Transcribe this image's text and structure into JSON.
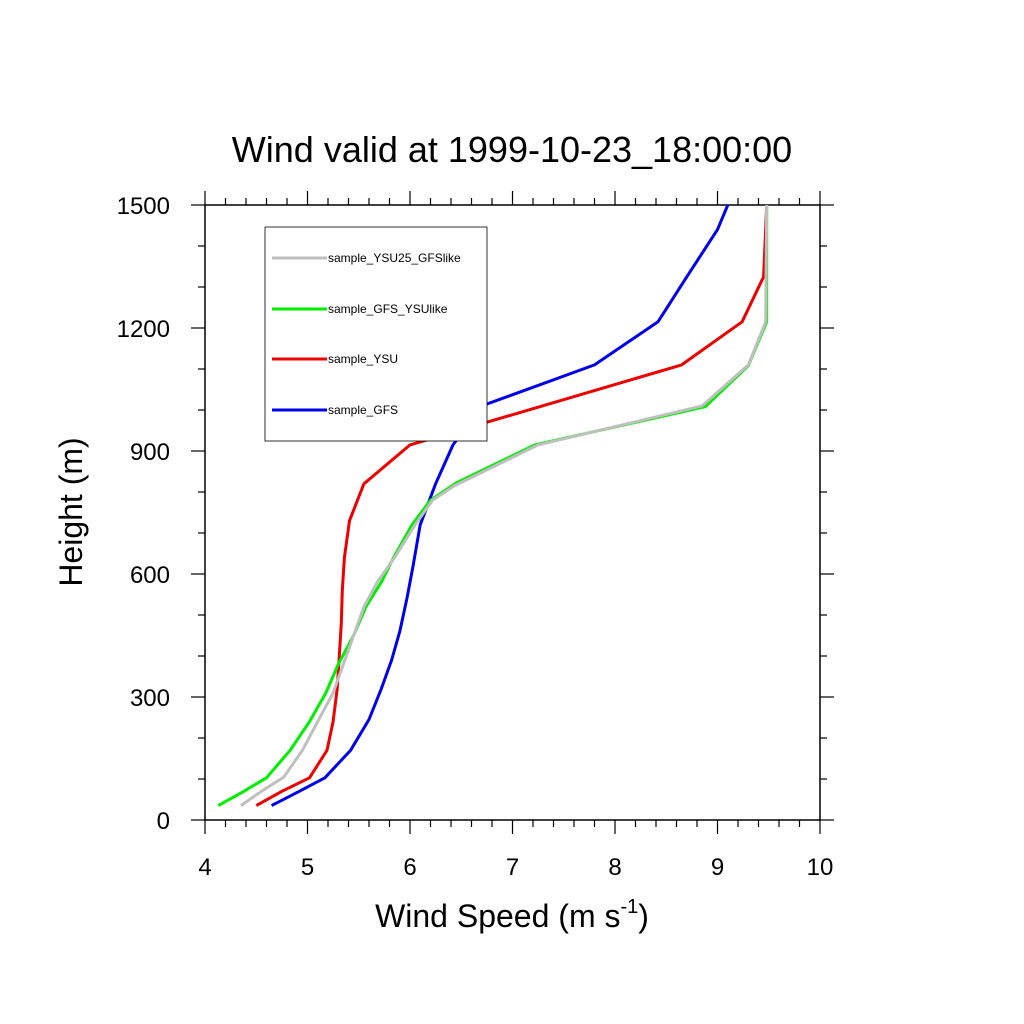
{
  "chart_data": {
    "type": "line",
    "title": "Wind valid at 1999-10-23_18:00:00",
    "xlabel": "Wind Speed (m s",
    "xlabel_sup": "-1",
    "xlabel_end": ")",
    "ylabel": "Height (m)",
    "xlim": [
      4,
      10
    ],
    "ylim": [
      0,
      1500
    ],
    "x_ticks": [
      "4",
      "5",
      "6",
      "7",
      "8",
      "9",
      "10"
    ],
    "y_ticks": [
      "0",
      "300",
      "600",
      "900",
      "1200",
      "1500"
    ],
    "grid": false,
    "legend_position": "top-left",
    "series": [
      {
        "name": "sample_YSU25_GFSlike",
        "color": "#bfbfbf",
        "points": [
          [
            4.35,
            35
          ],
          [
            4.55,
            70
          ],
          [
            4.77,
            105
          ],
          [
            4.95,
            170
          ],
          [
            5.1,
            240
          ],
          [
            5.25,
            310
          ],
          [
            5.35,
            380
          ],
          [
            5.45,
            450
          ],
          [
            5.55,
            520
          ],
          [
            5.68,
            580
          ],
          [
            5.85,
            640
          ],
          [
            6.05,
            720
          ],
          [
            6.22,
            780
          ],
          [
            6.43,
            815
          ],
          [
            7.25,
            915
          ],
          [
            8.85,
            1010
          ],
          [
            9.3,
            1110
          ],
          [
            9.47,
            1215
          ],
          [
            9.48,
            1500
          ]
        ]
      },
      {
        "name": "sample_GFS_YSUlike",
        "color": "#00ee00",
        "points": [
          [
            4.13,
            35
          ],
          [
            4.38,
            70
          ],
          [
            4.6,
            103
          ],
          [
            4.83,
            170
          ],
          [
            5.02,
            240
          ],
          [
            5.18,
            310
          ],
          [
            5.3,
            380
          ],
          [
            5.45,
            450
          ],
          [
            5.57,
            520
          ],
          [
            5.72,
            580
          ],
          [
            5.84,
            640
          ],
          [
            6.02,
            720
          ],
          [
            6.2,
            780
          ],
          [
            6.45,
            822
          ],
          [
            7.22,
            915
          ],
          [
            8.88,
            1008
          ],
          [
            9.3,
            1108
          ],
          [
            9.48,
            1215
          ],
          [
            9.48,
            1500
          ]
        ]
      },
      {
        "name": "sample_YSU",
        "color": "#ee0000",
        "points": [
          [
            4.5,
            35
          ],
          [
            4.75,
            70
          ],
          [
            5.02,
            103
          ],
          [
            5.19,
            170
          ],
          [
            5.25,
            240
          ],
          [
            5.29,
            320
          ],
          [
            5.31,
            400
          ],
          [
            5.33,
            480
          ],
          [
            5.34,
            560
          ],
          [
            5.36,
            640
          ],
          [
            5.41,
            730
          ],
          [
            5.55,
            820
          ],
          [
            6.0,
            915
          ],
          [
            8.65,
            1110
          ],
          [
            9.24,
            1215
          ],
          [
            9.45,
            1325
          ],
          [
            9.48,
            1500
          ]
        ]
      },
      {
        "name": "sample_GFS",
        "color": "#0000ee",
        "points": [
          [
            4.65,
            35
          ],
          [
            4.92,
            70
          ],
          [
            5.17,
            103
          ],
          [
            5.42,
            170
          ],
          [
            5.6,
            245
          ],
          [
            5.72,
            320
          ],
          [
            5.82,
            390
          ],
          [
            5.9,
            460
          ],
          [
            5.97,
            540
          ],
          [
            6.03,
            620
          ],
          [
            6.1,
            720
          ],
          [
            6.25,
            820
          ],
          [
            6.42,
            915
          ],
          [
            6.7,
            1010
          ],
          [
            7.8,
            1110
          ],
          [
            8.42,
            1215
          ],
          [
            8.7,
            1325
          ],
          [
            9.0,
            1440
          ],
          [
            9.1,
            1500
          ]
        ]
      }
    ]
  }
}
